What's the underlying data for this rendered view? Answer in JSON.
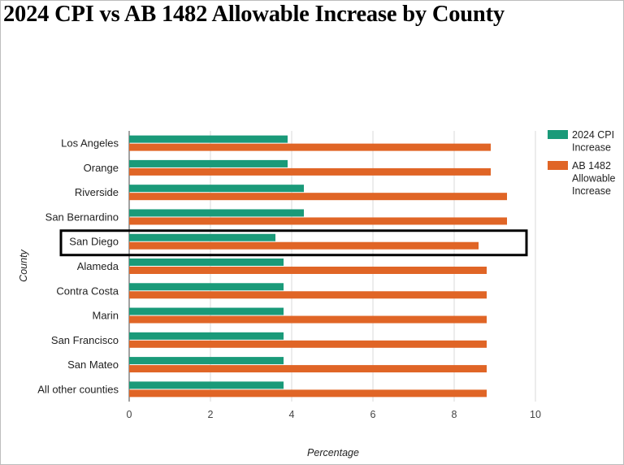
{
  "chart_data": {
    "type": "bar",
    "orientation": "horizontal",
    "title": "2024 CPI vs AB 1482 Allowable Increase by County",
    "xlabel": "Percentage",
    "ylabel": "County",
    "xlim": [
      0,
      10
    ],
    "xticks": [
      "0",
      "2",
      "4",
      "6",
      "8",
      "10"
    ],
    "grid": true,
    "legend_position": "right",
    "highlighted_category": "San Diego",
    "categories": [
      "Los Angeles",
      "Orange",
      "Riverside",
      "San Bernardino",
      "San Diego",
      "Alameda",
      "Contra Costa",
      "Marin",
      "San Francisco",
      "San Mateo",
      "All other counties"
    ],
    "series": [
      {
        "name": "2024 CPI Increase",
        "legend_lines": [
          "2024 CPI",
          "Increase"
        ],
        "color": "#1a9a79",
        "values": [
          3.9,
          3.9,
          4.3,
          4.3,
          3.6,
          3.8,
          3.8,
          3.8,
          3.8,
          3.8,
          3.8
        ]
      },
      {
        "name": "AB 1482 Allowable Increase",
        "legend_lines": [
          "AB 1482",
          "Allowable",
          "Increase"
        ],
        "color": "#e06526",
        "values": [
          8.9,
          8.9,
          9.3,
          9.3,
          8.6,
          8.8,
          8.8,
          8.8,
          8.8,
          8.8,
          8.8
        ]
      }
    ]
  }
}
